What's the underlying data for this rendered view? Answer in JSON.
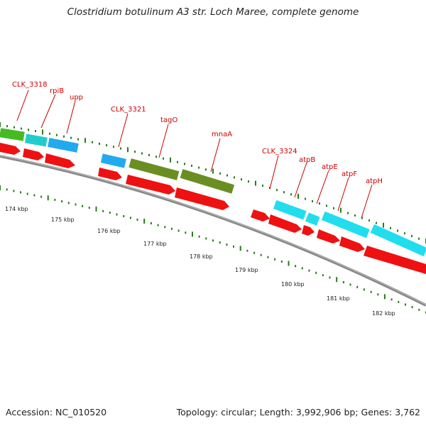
{
  "title": "Clostridium botulinum A3 str. Loch Maree, complete genome",
  "footer": {
    "accession": "Accession: NC_010520",
    "summary": "Topology: circular; Length: 3,992,906 bp; Genes: 3,762"
  },
  "colors": {
    "gene_label": "#cc0000",
    "cds": "#ee1111",
    "tick": "#2a7a1c",
    "backbone": "#777777",
    "feature_green": "#44bb22",
    "feature_teal": "#22cccc",
    "feature_blue": "#22aaee",
    "feature_olive": "#6b8e23",
    "feature_cyan": "#22ddee"
  },
  "gene_labels": [
    {
      "id": "clk3318",
      "text": "CLK_3318"
    },
    {
      "id": "rpib",
      "text": "rpiB"
    },
    {
      "id": "upp",
      "text": "upp"
    },
    {
      "id": "clk3321",
      "text": "CLK_3321"
    },
    {
      "id": "tago",
      "text": "tagO"
    },
    {
      "id": "mnaa",
      "text": "mnaA"
    },
    {
      "id": "clk3324",
      "text": "CLK_3324"
    },
    {
      "id": "atpb",
      "text": "atpB"
    },
    {
      "id": "atpe",
      "text": "atpE"
    },
    {
      "id": "atpf",
      "text": "atpF"
    },
    {
      "id": "atph",
      "text": "atpH"
    }
  ],
  "kbp_labels": [
    "174 kbp",
    "175 kbp",
    "176 kbp",
    "177 kbp",
    "178 kbp",
    "179 kbp",
    "180 kbp",
    "181 kbp",
    "182 kbp"
  ]
}
